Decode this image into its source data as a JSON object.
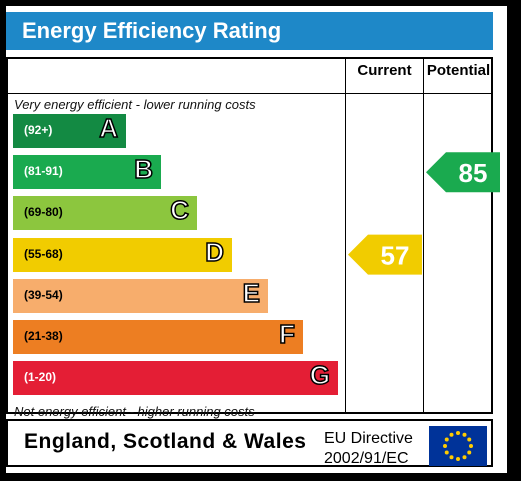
{
  "title": "Energy Efficiency Rating",
  "columns": {
    "current": "Current",
    "potential": "Potential"
  },
  "top_note": "Very energy efficient - lower running costs",
  "bottom_note": "Not energy efficient - higher running costs",
  "footer": {
    "country": "England, Scotland & Wales",
    "directive_line1": "EU Directive",
    "directive_line2": "2002/91/EC"
  },
  "icons": {
    "flag": "eu-flag-icon"
  },
  "chart_data": {
    "type": "bar",
    "categories": [
      "A",
      "B",
      "C",
      "D",
      "E",
      "F",
      "G"
    ],
    "ranges": [
      "(92+)",
      "(81-91)",
      "(69-80)",
      "(55-68)",
      "(39-54)",
      "(21-38)",
      "(1-20)"
    ],
    "colors": [
      "#138a43",
      "#1aaa4f",
      "#8cc63e",
      "#f1cc00",
      "#f7ad6c",
      "#ed7e22",
      "#e41e35"
    ],
    "current": {
      "value": 57,
      "band": "D",
      "color": "#f1cc00"
    },
    "potential": {
      "value": 85,
      "band": "B",
      "color": "#1aaa4f"
    }
  }
}
